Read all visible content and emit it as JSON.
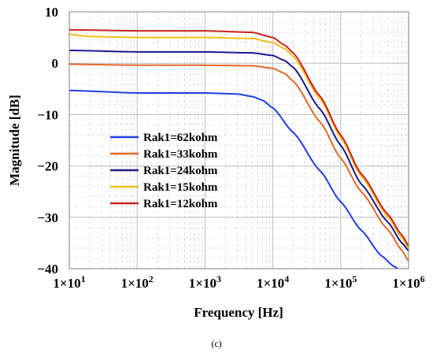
{
  "chart_data": {
    "type": "line",
    "xlabel": "Frequency [Hz]",
    "ylabel": "Magnitude [dB]",
    "caption": "(c)",
    "x_scale": "log",
    "xlim": [
      10,
      1000000
    ],
    "ylim": [
      -40,
      10
    ],
    "y_ticks": [
      10,
      0,
      -10,
      -20,
      -30,
      -40
    ],
    "y_tick_labels": [
      "10",
      "0",
      "−10",
      "−20",
      "−30",
      "−40"
    ],
    "x_ticks": [
      10,
      100,
      1000,
      10000,
      100000,
      1000000
    ],
    "x_tick_labels": [
      {
        "base": "1×10",
        "exp": "1"
      },
      {
        "base": "1×10",
        "exp": "2"
      },
      {
        "base": "1×10",
        "exp": "3"
      },
      {
        "base": "1×10",
        "exp": "4"
      },
      {
        "base": "1×10",
        "exp": "5"
      },
      {
        "base": "1×10",
        "exp": "6"
      }
    ],
    "grid": {
      "major": true,
      "minor": true
    },
    "legend_position": "center-left",
    "series": [
      {
        "name": "Rak1=62kohm",
        "color": "#1f3fe0",
        "points": [
          [
            10,
            -5.3
          ],
          [
            100,
            -5.8
          ],
          [
            1000,
            -5.8
          ],
          [
            3000,
            -6.0
          ],
          [
            5000,
            -6.5
          ],
          [
            7000,
            -7.2
          ],
          [
            10000,
            -8.7
          ],
          [
            20000,
            -13.5
          ],
          [
            50000,
            -21.0
          ],
          [
            100000,
            -27.0
          ],
          [
            200000,
            -32.5
          ],
          [
            400000,
            -37.5
          ],
          [
            600000,
            -39.5
          ],
          [
            700000,
            -40.0
          ]
        ]
      },
      {
        "name": "Rak1=33kohm",
        "color": "#e0682a",
        "points": [
          [
            10,
            -0.2
          ],
          [
            100,
            -0.4
          ],
          [
            1000,
            -0.4
          ],
          [
            5000,
            -0.5
          ],
          [
            10000,
            -1.0
          ],
          [
            15000,
            -2.0
          ],
          [
            20000,
            -3.5
          ],
          [
            50000,
            -11.5
          ],
          [
            100000,
            -18.5
          ],
          [
            200000,
            -25.0
          ],
          [
            500000,
            -32.5
          ],
          [
            800000,
            -36.5
          ],
          [
            1000000,
            -38.5
          ]
        ]
      },
      {
        "name": "Rak1=24kohm",
        "color": "#1a1a8c",
        "points": [
          [
            10,
            2.5
          ],
          [
            100,
            2.2
          ],
          [
            1000,
            2.2
          ],
          [
            5000,
            2.0
          ],
          [
            10000,
            1.5
          ],
          [
            15000,
            0.5
          ],
          [
            20000,
            -0.8
          ],
          [
            50000,
            -9.0
          ],
          [
            100000,
            -16.0
          ],
          [
            200000,
            -23.5
          ],
          [
            500000,
            -31.0
          ],
          [
            800000,
            -35.0
          ],
          [
            1000000,
            -36.5
          ]
        ]
      },
      {
        "name": "Rak1=15kohm",
        "color": "#f2be1e",
        "points": [
          [
            10,
            5.6
          ],
          [
            20,
            5.2
          ],
          [
            100,
            5.0
          ],
          [
            1000,
            5.0
          ],
          [
            5000,
            4.8
          ],
          [
            10000,
            4.0
          ],
          [
            15000,
            2.8
          ],
          [
            20000,
            1.3
          ],
          [
            50000,
            -7.0
          ],
          [
            100000,
            -14.5
          ],
          [
            200000,
            -22.0
          ],
          [
            500000,
            -30.0
          ],
          [
            800000,
            -34.0
          ],
          [
            1000000,
            -36.0
          ]
        ]
      },
      {
        "name": "Rak1=12kohm",
        "color": "#c8241e",
        "points": [
          [
            10,
            6.5
          ],
          [
            100,
            6.3
          ],
          [
            1000,
            6.3
          ],
          [
            5000,
            6.0
          ],
          [
            10000,
            5.0
          ],
          [
            15000,
            3.5
          ],
          [
            20000,
            2.0
          ],
          [
            50000,
            -6.5
          ],
          [
            100000,
            -14.0
          ],
          [
            200000,
            -21.5
          ],
          [
            500000,
            -29.5
          ],
          [
            800000,
            -33.5
          ],
          [
            1000000,
            -35.5
          ]
        ]
      }
    ]
  }
}
